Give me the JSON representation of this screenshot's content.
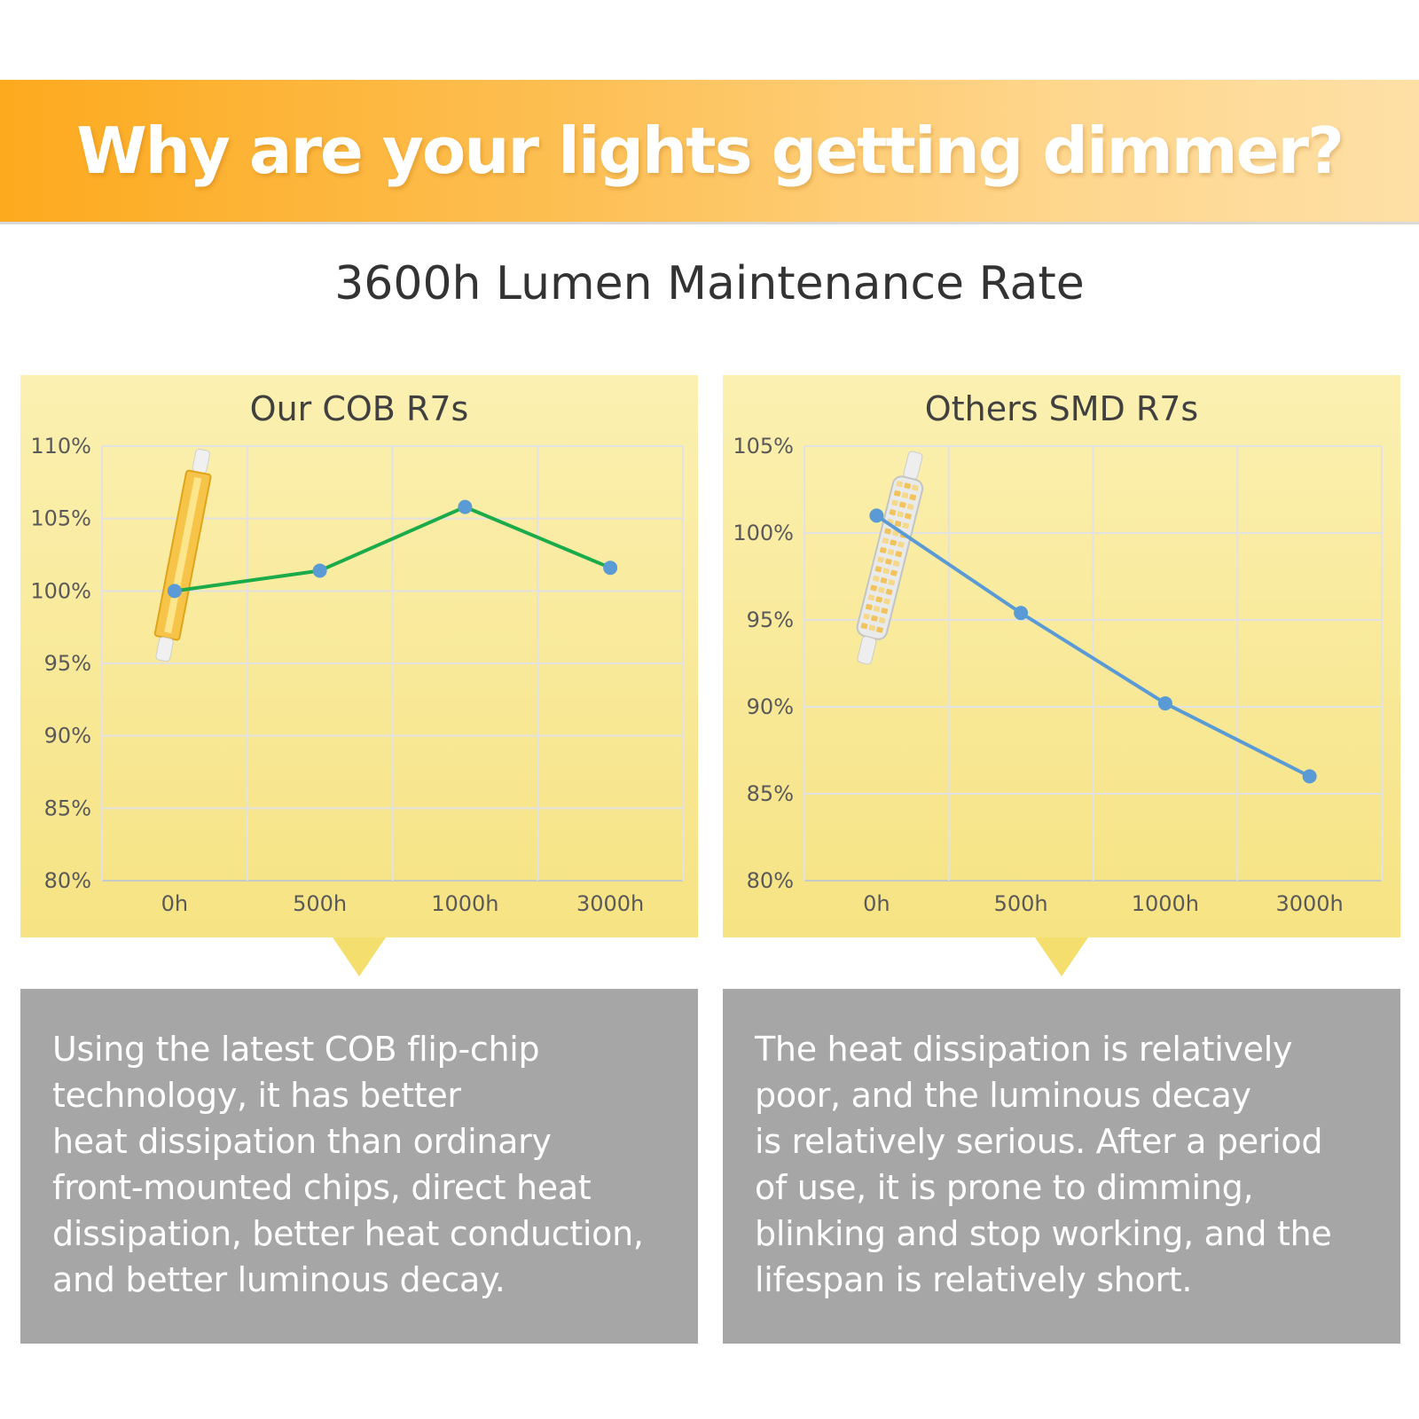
{
  "banner": {
    "title": "Why are your lights getting dimmer?"
  },
  "subtitle": "3600h Lumen Maintenance Rate",
  "chart_data": [
    {
      "type": "line",
      "title": "Our COB R7s",
      "xlabel": "",
      "ylabel": "",
      "categories": [
        "0h",
        "500h",
        "1000h",
        "3000h"
      ],
      "series": [
        {
          "values": [
            100,
            101.4,
            105.8,
            101.6
          ],
          "color": "#1bab4a"
        }
      ],
      "y_ticks": [
        "110%",
        "105%",
        "100%",
        "95%",
        "90%",
        "85%",
        "80%"
      ],
      "ylim": [
        80,
        110
      ],
      "grid": true,
      "marker_color": "#5b9bd5",
      "product_image": "cob-r7s-bulb"
    },
    {
      "type": "line",
      "title": "Others SMD R7s",
      "xlabel": "",
      "ylabel": "",
      "categories": [
        "0h",
        "500h",
        "1000h",
        "3000h"
      ],
      "series": [
        {
          "values": [
            101,
            95.4,
            90.2,
            86
          ],
          "color": "#5b9bd5"
        }
      ],
      "y_ticks": [
        "105%",
        "100%",
        "95%",
        "90%",
        "85%",
        "80%"
      ],
      "ylim": [
        80,
        105
      ],
      "grid": true,
      "marker_color": "#5b9bd5",
      "product_image": "smd-r7s-bulb"
    }
  ],
  "descriptions": {
    "left": [
      "Using the latest COB flip-chip",
      "technology, it has better",
      "heat dissipation than ordinary",
      "front-mounted chips, direct heat",
      "dissipation, better heat conduction,",
      "and better luminous decay."
    ],
    "right": [
      "The heat dissipation is relatively",
      "poor, and the luminous decay",
      "is relatively serious. After a period",
      "of use, it is prone to dimming,",
      "blinking and stop working, and the",
      "lifespan is relatively short."
    ]
  }
}
